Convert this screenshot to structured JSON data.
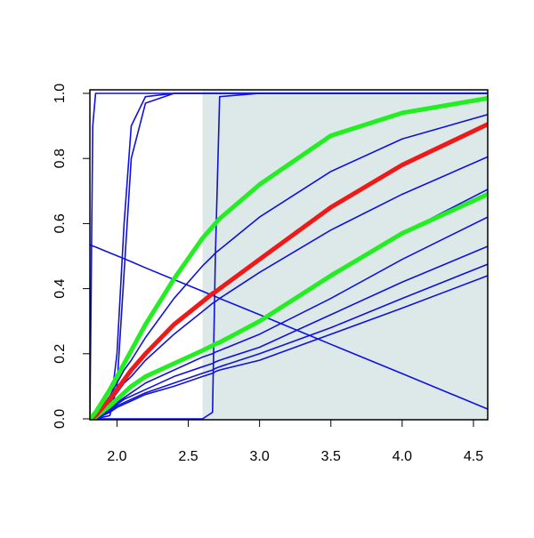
{
  "chart_data": {
    "type": "line",
    "x": [
      1.81,
      1.83,
      1.85,
      1.95,
      2.0,
      2.05,
      2.1,
      2.2,
      2.4,
      2.6,
      2.67,
      2.69,
      2.72,
      3.0,
      3.5,
      4.0,
      4.6
    ],
    "shade_x": [
      2.6,
      4.6
    ],
    "shade_color": "#dde9e9",
    "xlim": [
      1.81,
      4.6
    ],
    "ylim": [
      0,
      1
    ],
    "xticks": [
      {
        "value": 2,
        "label": "2.0"
      },
      {
        "value": 2.5,
        "label": "2.5"
      },
      {
        "value": 3,
        "label": "3.0"
      },
      {
        "value": 3.5,
        "label": "3.5"
      },
      {
        "value": 4,
        "label": "4.0"
      },
      {
        "value": 4.5,
        "label": "4.5"
      }
    ],
    "yticks": [
      {
        "value": 0,
        "label": "0.0"
      },
      {
        "value": 0.2,
        "label": "0.2"
      },
      {
        "value": 0.4,
        "label": "0.4"
      },
      {
        "value": 0.6,
        "label": "0.6"
      },
      {
        "value": 0.8,
        "label": "0.8"
      },
      {
        "value": 1,
        "label": "1.0"
      }
    ],
    "series": [
      {
        "color": "#1010e0",
        "linewidth": 1.6,
        "values": [
          0,
          0.9,
          1,
          1,
          1,
          1,
          1,
          1,
          1,
          1,
          1,
          1,
          1,
          1,
          1,
          1,
          1
        ]
      },
      {
        "color": "#1010e0",
        "linewidth": 1.6,
        "values": [
          0,
          0,
          0,
          0.02,
          0.2,
          0.6,
          0.9,
          0.99,
          1,
          1,
          1,
          1,
          1,
          1,
          1,
          1,
          1
        ]
      },
      {
        "color": "#1010e0",
        "linewidth": 1.6,
        "values": [
          0,
          0,
          0,
          0.01,
          0.1,
          0.45,
          0.8,
          0.97,
          1,
          1,
          1,
          1,
          1,
          1,
          1,
          1,
          1
        ]
      },
      {
        "color": "#1010e0",
        "linewidth": 1.6,
        "values": [
          0,
          0,
          0,
          0,
          0,
          0,
          0,
          0,
          0,
          0,
          0.02,
          0.5,
          0.99,
          1,
          1,
          1,
          1
        ]
      },
      {
        "color": "#1010e0",
        "linewidth": 1.6,
        "values": [
          0.535,
          0.531,
          0.528,
          0.51,
          0.501,
          0.492,
          0.483,
          0.464,
          0.428,
          0.392,
          0.379,
          0.376,
          0.37,
          0.32,
          0.229,
          0.139,
          0.03
        ]
      },
      {
        "color": "#1010e0",
        "linewidth": 1.6,
        "values": [
          0,
          0.005,
          0.01,
          0.07,
          0.11,
          0.15,
          0.18,
          0.25,
          0.37,
          0.47,
          0.5,
          0.51,
          0.52,
          0.62,
          0.76,
          0.86,
          0.935
        ]
      },
      {
        "color": "#1010e0",
        "linewidth": 1.6,
        "values": [
          0,
          0.004,
          0.008,
          0.05,
          0.08,
          0.11,
          0.13,
          0.18,
          0.26,
          0.33,
          0.355,
          0.36,
          0.37,
          0.45,
          0.58,
          0.69,
          0.805
        ]
      },
      {
        "color": "#1010e0",
        "linewidth": 1.6,
        "values": [
          0,
          0.003,
          0.006,
          0.04,
          0.06,
          0.08,
          0.1,
          0.13,
          0.17,
          0.21,
          0.225,
          0.23,
          0.235,
          0.3,
          0.445,
          0.57,
          0.705
        ]
      },
      {
        "color": "#1010e0",
        "linewidth": 1.6,
        "values": [
          0,
          0.003,
          0.006,
          0.035,
          0.05,
          0.065,
          0.08,
          0.11,
          0.15,
          0.19,
          0.2,
          0.205,
          0.21,
          0.26,
          0.37,
          0.49,
          0.62
        ]
      },
      {
        "color": "#1010e0",
        "linewidth": 1.6,
        "values": [
          0,
          0.002,
          0.004,
          0.03,
          0.045,
          0.06,
          0.07,
          0.09,
          0.13,
          0.16,
          0.17,
          0.175,
          0.18,
          0.22,
          0.32,
          0.42,
          0.53
        ]
      },
      {
        "color": "#1010e0",
        "linewidth": 1.6,
        "values": [
          0,
          0.002,
          0.004,
          0.025,
          0.04,
          0.05,
          0.06,
          0.08,
          0.11,
          0.14,
          0.15,
          0.155,
          0.16,
          0.2,
          0.28,
          0.37,
          0.475
        ]
      },
      {
        "color": "#1010e0",
        "linewidth": 1.6,
        "values": [
          0,
          0.002,
          0.004,
          0.02,
          0.035,
          0.045,
          0.055,
          0.075,
          0.1,
          0.13,
          0.14,
          0.145,
          0.15,
          0.18,
          0.26,
          0.34,
          0.44
        ]
      },
      {
        "color": "#22ee22",
        "linewidth": 5,
        "values": [
          0,
          0.003,
          0.006,
          0.04,
          0.06,
          0.08,
          0.1,
          0.13,
          0.17,
          0.21,
          0.225,
          0.23,
          0.235,
          0.3,
          0.44,
          0.57,
          0.69
        ]
      },
      {
        "color": "#ee1a1a",
        "linewidth": 5,
        "values": [
          0,
          0.005,
          0.01,
          0.06,
          0.09,
          0.12,
          0.15,
          0.2,
          0.29,
          0.36,
          0.385,
          0.39,
          0.4,
          0.49,
          0.65,
          0.78,
          0.905
        ]
      },
      {
        "color": "#22ee22",
        "linewidth": 5,
        "values": [
          0,
          0.01,
          0.02,
          0.09,
          0.13,
          0.17,
          0.21,
          0.29,
          0.43,
          0.555,
          0.59,
          0.6,
          0.615,
          0.72,
          0.87,
          0.94,
          0.985
        ]
      }
    ]
  }
}
